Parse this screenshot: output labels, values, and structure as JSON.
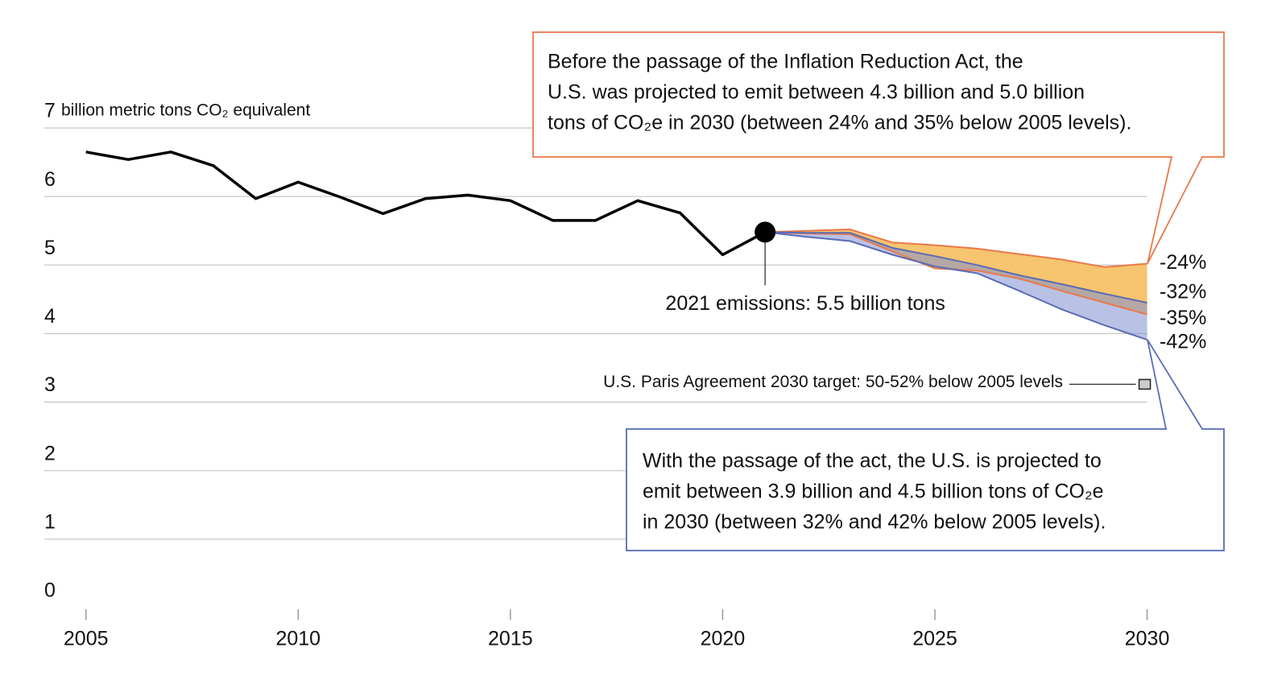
{
  "chart_data": {
    "type": "line",
    "y_label": "billion metric tons CO₂ equivalent",
    "x": [
      2005,
      2006,
      2007,
      2008,
      2009,
      2010,
      2011,
      2012,
      2013,
      2014,
      2015,
      2016,
      2017,
      2018,
      2019,
      2020,
      2021,
      2022,
      2023,
      2024,
      2025,
      2026,
      2027,
      2028,
      2029,
      2030
    ],
    "xlim": [
      2004,
      2032
    ],
    "xticks": [
      2005,
      2010,
      2015,
      2020,
      2025,
      2030
    ],
    "ylim": [
      0,
      7
    ],
    "yticks": [
      0,
      1,
      2,
      3,
      4,
      5,
      6,
      7
    ],
    "grid": true,
    "series": [
      {
        "color": "#000000",
        "values": [
          6.65,
          6.54,
          6.65,
          6.45,
          5.97,
          6.21,
          5.99,
          5.75,
          5.97,
          6.02,
          5.94,
          5.65,
          5.65,
          5.94,
          5.76,
          5.15,
          5.48,
          null,
          null,
          null,
          null,
          null,
          null,
          null,
          null,
          null
        ]
      }
    ],
    "bands": [
      {
        "color": "#f7c46f",
        "edge_color": "#e8794a",
        "high": [
          null,
          null,
          null,
          null,
          null,
          null,
          null,
          null,
          null,
          null,
          null,
          null,
          null,
          null,
          null,
          null,
          5.48,
          5.5,
          5.52,
          5.33,
          5.29,
          5.24,
          5.16,
          5.08,
          4.97,
          5.02
        ],
        "low": [
          null,
          null,
          null,
          null,
          null,
          null,
          null,
          null,
          null,
          null,
          null,
          null,
          null,
          null,
          null,
          null,
          5.48,
          5.46,
          5.45,
          5.2,
          4.95,
          4.92,
          4.8,
          4.62,
          4.45,
          4.28
        ]
      },
      {
        "color": "#7f8fd0",
        "edge_color": "#5a6bb5",
        "high": [
          null,
          null,
          null,
          null,
          null,
          null,
          null,
          null,
          null,
          null,
          null,
          null,
          null,
          null,
          null,
          null,
          5.48,
          5.47,
          5.47,
          5.25,
          5.13,
          5.0,
          4.85,
          4.72,
          4.58,
          4.45
        ],
        "low": [
          null,
          null,
          null,
          null,
          null,
          null,
          null,
          null,
          null,
          null,
          null,
          null,
          null,
          null,
          null,
          null,
          5.48,
          5.41,
          5.35,
          5.15,
          4.98,
          4.88,
          4.62,
          4.35,
          4.12,
          3.91
        ]
      }
    ],
    "end_labels": [
      {
        "label": "-24%",
        "color": "#e8794a"
      },
      {
        "label": "-32%",
        "color": "#5a6bb5"
      },
      {
        "label": "-35%",
        "color": "#e8794a"
      },
      {
        "label": "-42%",
        "color": "#5a6bb5"
      }
    ],
    "marker": {
      "x": 2021,
      "value": 5.48,
      "label": "2021 emissions: 5.5 billion tons"
    },
    "target": {
      "label": "U.S. Paris Agreement 2030 target: 50-52% below 2005 levels",
      "x": 2030,
      "range": [
        3.19,
        3.33
      ]
    },
    "callouts": [
      {
        "color": "#e8794a",
        "lines": [
          "Before the passage of the Inflation Reduction Act, the",
          "U.S. was projected to emit between 4.3 billion and 5.0 billion",
          "tons of CO₂e in 2030 (between 24% and 35% below 2005 levels)."
        ]
      },
      {
        "color": "#5a6bb5",
        "lines": [
          "With the passage of the act, the U.S. is projected to",
          "emit between 3.9 billion and 4.5 billion tons of CO₂e",
          "in 2030 (between 32% and 42% below 2005 levels)."
        ]
      }
    ]
  }
}
